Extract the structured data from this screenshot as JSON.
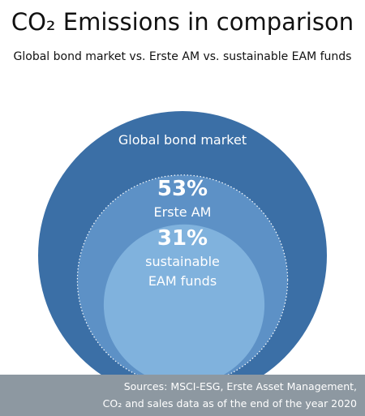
{
  "chart_data": {
    "type": "nested-circles",
    "title": "CO₂ Emissions in comparison",
    "subtitle": "Global bond market vs. Erste AM vs. sustainable EAM funds",
    "outer_label": "Global bond market",
    "categories": [
      "Erste AM",
      "sustainable\nEAM funds"
    ],
    "values": [
      53,
      31
    ],
    "value_labels": [
      "53%",
      "31%"
    ],
    "colors": [
      "#3b6fa6",
      "#5d91c6",
      "#80b2dd"
    ],
    "source": "Sources: MSCI-ESG, Erste Asset Management,\nCO₂ and sales data as of the end of the year 2020"
  }
}
